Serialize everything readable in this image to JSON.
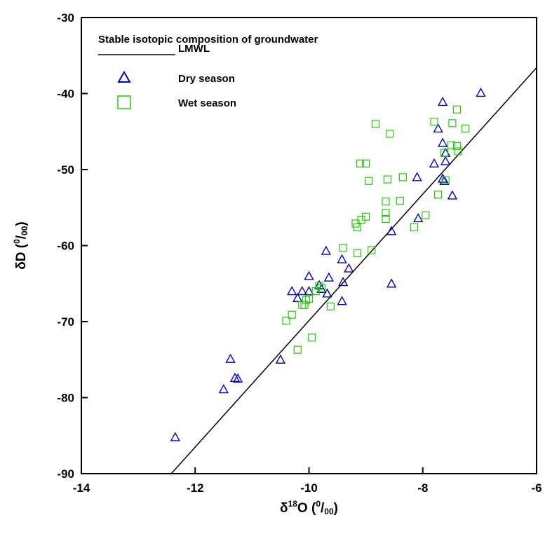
{
  "chart_data": {
    "type": "scatter",
    "title": "",
    "xlabel": {
      "base": "δ",
      "sup": "18",
      "main": "O (",
      "unit_sup": "0",
      "unit": "/",
      "unit_sub": "00",
      "close": ")"
    },
    "ylabel": {
      "main": "δD (",
      "unit_sup": "0",
      "unit": "/",
      "unit_sub": "00",
      "close": ")"
    },
    "xlim": [
      -14,
      -6
    ],
    "ylim": [
      -90,
      -30
    ],
    "xticks": [
      -14,
      -12,
      -10,
      -8,
      -6
    ],
    "yticks": [
      -90,
      -80,
      -70,
      -60,
      -50,
      -40,
      -30
    ],
    "grid": false,
    "legend": {
      "title": "Stable isotopic composition of groundwater",
      "placement": "top-left"
    },
    "lines": [
      {
        "name": "LMWL",
        "color": "#000000",
        "x": [
          -12.42,
          -6.0
        ],
        "y": [
          -90.0,
          -36.6
        ]
      }
    ],
    "series": [
      {
        "name": "Dry season",
        "marker": "triangle",
        "color": "#0000cc",
        "points": [
          [
            -6.98,
            -39.9
          ],
          [
            -7.65,
            -41.1
          ],
          [
            -7.73,
            -44.6
          ],
          [
            -7.65,
            -46.5
          ],
          [
            -7.6,
            -47.8
          ],
          [
            -7.6,
            -48.9
          ],
          [
            -7.8,
            -49.2
          ],
          [
            -7.65,
            -51.2
          ],
          [
            -7.62,
            -51.5
          ],
          [
            -8.1,
            -51.0
          ],
          [
            -7.48,
            -53.4
          ],
          [
            -8.08,
            -56.4
          ],
          [
            -8.55,
            -58.1
          ],
          [
            -8.55,
            -65.0
          ],
          [
            -9.7,
            -60.7
          ],
          [
            -9.42,
            -61.8
          ],
          [
            -9.3,
            -63.0
          ],
          [
            -9.65,
            -64.2
          ],
          [
            -10.0,
            -64.0
          ],
          [
            -9.4,
            -64.8
          ],
          [
            -9.82,
            -65.2
          ],
          [
            -9.78,
            -65.7
          ],
          [
            -10.3,
            -66.0
          ],
          [
            -10.12,
            -66.0
          ],
          [
            -10.0,
            -66.0
          ],
          [
            -9.68,
            -66.3
          ],
          [
            -10.2,
            -66.9
          ],
          [
            -9.42,
            -67.3
          ],
          [
            -11.38,
            -74.9
          ],
          [
            -10.5,
            -75.0
          ],
          [
            -11.3,
            -77.4
          ],
          [
            -11.25,
            -77.5
          ],
          [
            -11.5,
            -78.9
          ],
          [
            -12.35,
            -85.2
          ]
        ]
      },
      {
        "name": "Wet season",
        "marker": "square",
        "color": "#22cc00",
        "points": [
          [
            -8.83,
            -44.0
          ],
          [
            -8.58,
            -45.3
          ],
          [
            -7.8,
            -43.7
          ],
          [
            -7.4,
            -42.1
          ],
          [
            -7.48,
            -43.9
          ],
          [
            -7.25,
            -44.6
          ],
          [
            -7.5,
            -46.8
          ],
          [
            -7.4,
            -46.9
          ],
          [
            -7.38,
            -47.6
          ],
          [
            -7.62,
            -47.8
          ],
          [
            -9.1,
            -49.2
          ],
          [
            -9.0,
            -49.2
          ],
          [
            -8.95,
            -51.5
          ],
          [
            -8.62,
            -51.3
          ],
          [
            -8.35,
            -51.0
          ],
          [
            -7.6,
            -51.4
          ],
          [
            -7.73,
            -53.3
          ],
          [
            -8.65,
            -54.2
          ],
          [
            -8.4,
            -54.1
          ],
          [
            -9.0,
            -56.2
          ],
          [
            -9.08,
            -56.6
          ],
          [
            -8.65,
            -55.7
          ],
          [
            -8.65,
            -56.5
          ],
          [
            -7.95,
            -56.0
          ],
          [
            -8.15,
            -57.6
          ],
          [
            -9.18,
            -57.1
          ],
          [
            -9.15,
            -57.6
          ],
          [
            -9.4,
            -60.3
          ],
          [
            -8.9,
            -60.6
          ],
          [
            -9.15,
            -61.0
          ],
          [
            -9.82,
            -65.3
          ],
          [
            -9.78,
            -65.6
          ],
          [
            -10.12,
            -67.8
          ],
          [
            -10.08,
            -67.8
          ],
          [
            -10.05,
            -67.2
          ],
          [
            -10.0,
            -67.0
          ],
          [
            -9.88,
            -66.0
          ],
          [
            -9.62,
            -68.0
          ],
          [
            -10.3,
            -69.1
          ],
          [
            -10.4,
            -69.9
          ],
          [
            -10.2,
            -73.7
          ],
          [
            -9.95,
            -72.1
          ]
        ]
      }
    ]
  }
}
